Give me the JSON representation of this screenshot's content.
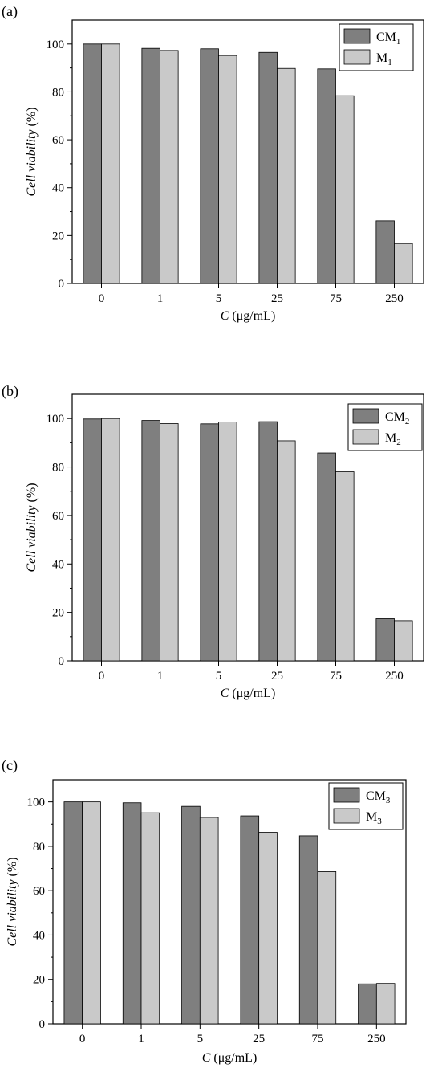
{
  "chart_data": [
    {
      "type": "bar",
      "panel_label": "(a)",
      "categories": [
        "0",
        "1",
        "5",
        "25",
        "75",
        "250"
      ],
      "series": [
        {
          "name_main": "CM",
          "name_sub": "1",
          "values": [
            100.0,
            98.2,
            98.0,
            96.5,
            89.6,
            26.2
          ]
        },
        {
          "name_main": "M",
          "name_sub": "1",
          "values": [
            100.0,
            97.3,
            95.2,
            89.8,
            78.4,
            16.7
          ]
        }
      ],
      "ylabel": "Cell viability (%)",
      "xlabel_italic": "C",
      "xlabel_rest": " (μg/mL)",
      "ylim": [
        0,
        110
      ],
      "yticks": [
        0,
        20,
        40,
        60,
        80,
        100
      ],
      "legend": "top-right"
    },
    {
      "type": "bar",
      "panel_label": "(b)",
      "categories": [
        "0",
        "1",
        "5",
        "25",
        "75",
        "250"
      ],
      "series": [
        {
          "name_main": "CM",
          "name_sub": "2",
          "values": [
            99.8,
            99.2,
            97.8,
            98.7,
            85.8,
            17.4
          ]
        },
        {
          "name_main": "M",
          "name_sub": "2",
          "values": [
            100.0,
            97.9,
            98.6,
            90.8,
            78.0,
            16.6
          ]
        }
      ],
      "ylabel": "Cell viability (%)",
      "xlabel_italic": "C",
      "xlabel_rest": " (μg/mL)",
      "ylim": [
        0,
        110
      ],
      "yticks": [
        0,
        20,
        40,
        60,
        80,
        100
      ],
      "legend": "top-right"
    },
    {
      "type": "bar",
      "panel_label": "(c)",
      "categories": [
        "0",
        "1",
        "5",
        "25",
        "75",
        "250"
      ],
      "series": [
        {
          "name_main": "CM",
          "name_sub": "3",
          "values": [
            100.0,
            99.6,
            98.0,
            93.7,
            84.7,
            18.0
          ]
        },
        {
          "name_main": "M",
          "name_sub": "3",
          "values": [
            100.0,
            95.1,
            93.0,
            86.3,
            68.6,
            18.2
          ]
        }
      ],
      "ylabel": "Cell viability (%)",
      "xlabel_italic": "C",
      "xlabel_rest": " (μg/mL)",
      "ylim": [
        0,
        110
      ],
      "yticks": [
        0,
        20,
        40,
        60,
        80,
        100
      ],
      "legend": "top-right"
    }
  ],
  "colors": {
    "series_dark": "#7f7f7f",
    "series_light": "#c9c9c9",
    "axis": "#000000"
  }
}
